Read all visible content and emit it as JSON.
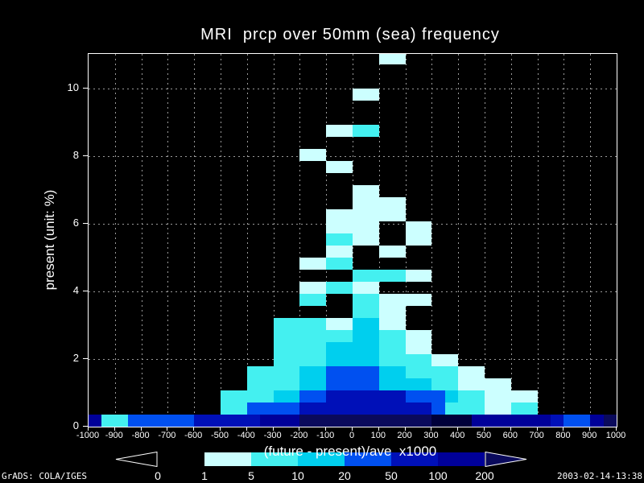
{
  "title": "MRI  prcp over 50mm (sea) frequency",
  "footer_left": "GrADS: COLA/IGES",
  "footer_right": "2003-02-14-13:38",
  "y_axis": {
    "label": "present (unit: %)",
    "ticks": [
      "0",
      "2",
      "4",
      "6",
      "8",
      "10"
    ]
  },
  "x_axis": {
    "label": "(future - present)/ave  x1000",
    "ticks": [
      "-1000",
      "-900",
      "-800",
      "-700",
      "-600",
      "-500",
      "-400",
      "-300",
      "-200",
      "-100",
      "0",
      "100",
      "200",
      "300",
      "400",
      "500",
      "600",
      "700",
      "800",
      "900",
      "1000"
    ]
  },
  "legend": {
    "labels": [
      "0",
      "1",
      "5",
      "10",
      "20",
      "50",
      "100",
      "200"
    ],
    "segment_colors": [
      "#000000",
      "#ccffff",
      "#44f0f0",
      "#00cfee",
      "#0050f0",
      "#0010b8",
      "#000099"
    ],
    "left_arrow_color": "#000000",
    "right_arrow_color": "#0a0a5c",
    "outline_color": "#ffffff"
  },
  "chart_data": {
    "type": "heatmap",
    "title": "MRI  prcp over 50mm (sea) frequency",
    "xlabel": "(future - present)/ave  x1000",
    "ylabel": "present (unit: %)",
    "xlim": [
      -1000,
      1000
    ],
    "ylim": [
      0,
      11
    ],
    "grid": "dotted",
    "x_bin_size": 50,
    "x_start": -1000,
    "n_cols": 40,
    "n_rows": 31,
    "legend_levels": [
      "0",
      "1",
      "5",
      "10",
      "20",
      "50",
      "100",
      "200"
    ],
    "palette": {
      "1": "#ccffff",
      "2": "#44f0f0",
      "3": "#00cfee",
      "4": "#0050f0",
      "5": "#0010b8",
      "6": "#000099",
      "7": "#0a0a5c",
      "8": "#00003a"
    },
    "rows_bottom_to_top": [
      "6224444455555666777777777788866666654467",
      "..........224444555555555542221122......",
      "..........222233445555554443221111......",
      "............22223344443333221111........",
      "............222233444433222211..........",
      "..............22223333222211............",
      "..............222233332211..............",
      "..............222222332211..............",
      "..............2222113311................",
      "....................2211................",
      "................22..221111..............",
      "................112211..................",
      "....................222211..............",
      "................1122....................",
      "..................11..11................",
      "..................2211..11..............",
      "..................1111..11..............",
      "..................111111................",
      "....................1111................",
      "....................11..................",
      "........................................",
      "..................11....................",
      "................11......................",
      "........................................",
      "..................1122..................",
      "........................................",
      "........................................",
      "....................11..................",
      "........................................",
      "........................................",
      "......................11................"
    ]
  }
}
